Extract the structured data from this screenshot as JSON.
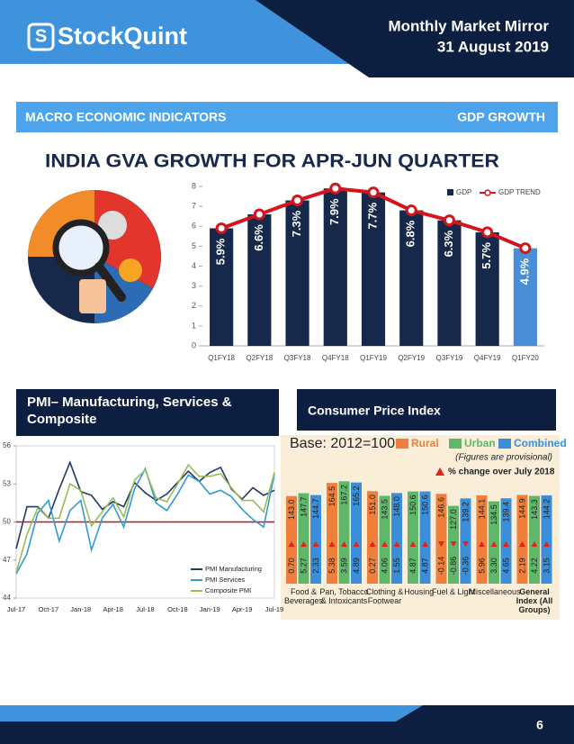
{
  "header": {
    "logo": "StockQuint",
    "title": "Monthly Market Mirror",
    "date": "31 August 2019"
  },
  "sections": {
    "macro": "MACRO ECONOMIC INDICATORS",
    "gdp": "GDP GROWTH",
    "pmi": "PMI– Manufacturing, Services & Composite",
    "cpi": "Consumer Price Index"
  },
  "page_number": "6",
  "chart_data": [
    {
      "type": "combo",
      "title": "INDIA GVA GROWTH FOR APR-JUN QUARTER",
      "categories": [
        "Q1FY18",
        "Q2FY18",
        "Q3FY18",
        "Q4FY18",
        "Q1FY19",
        "Q2FY19",
        "Q3FY19",
        "Q4FY19",
        "Q1FY20"
      ],
      "series": [
        {
          "name": "GDP",
          "color": "#17294a",
          "colors": [
            "#17294a",
            "#17294a",
            "#17294a",
            "#17294a",
            "#17294a",
            "#17294a",
            "#17294a",
            "#17294a",
            "#4a8fd6"
          ],
          "values": [
            5.9,
            6.6,
            7.3,
            7.9,
            7.7,
            6.8,
            6.3,
            5.7,
            4.9
          ],
          "value_labels": [
            "5.9%",
            "6.6%",
            "7.3%",
            "7.9%",
            "7.7%",
            "6.8%",
            "6.3%",
            "5.7%",
            "4.9%"
          ]
        },
        {
          "name": "GDP TREND",
          "color": "#d3151d",
          "values": [
            5.9,
            6.6,
            7.3,
            7.9,
            7.7,
            6.8,
            6.3,
            5.7,
            4.9
          ]
        }
      ],
      "ylim": [
        0,
        8
      ],
      "yticks": [
        0,
        1,
        2,
        3,
        4,
        5,
        6,
        7,
        8
      ]
    },
    {
      "type": "line",
      "categories": [
        "Jul-17",
        null,
        null,
        "Oct-17",
        null,
        null,
        "Jan-18",
        null,
        null,
        "Apr-18",
        null,
        null,
        "Jul-18",
        null,
        null,
        "Oct-18",
        null,
        null,
        "Jan-19",
        null,
        null,
        "Apr-19",
        null,
        null,
        "Jul-19"
      ],
      "series": [
        {
          "name": "PMI Manufacturing",
          "color": "#1f3864",
          "values": [
            47.9,
            51.2,
            51.2,
            50.3,
            52.6,
            54.7,
            52.4,
            52.1,
            51.0,
            51.6,
            51.2,
            53.1,
            52.3,
            51.7,
            52.2,
            53.1,
            54.0,
            53.2,
            53.9,
            54.3,
            52.6,
            51.8,
            52.7,
            52.1,
            52.5
          ]
        },
        {
          "name": "PMI Services",
          "color": "#2e9bd6",
          "values": [
            45.9,
            47.5,
            50.7,
            51.7,
            48.5,
            50.9,
            51.7,
            47.8,
            50.3,
            51.4,
            49.6,
            52.6,
            54.2,
            51.5,
            50.9,
            52.2,
            53.7,
            53.2,
            52.2,
            52.5,
            52.0,
            51.0,
            50.2,
            49.6,
            53.8
          ]
        },
        {
          "name": "Composite PMI",
          "color": "#9bbb59",
          "values": [
            46.0,
            49.0,
            51.1,
            50.3,
            50.3,
            53.0,
            52.5,
            49.7,
            50.8,
            51.9,
            50.4,
            53.3,
            54.1,
            51.9,
            51.6,
            53.0,
            54.5,
            53.6,
            53.6,
            53.8,
            52.7,
            51.7,
            51.7,
            50.8,
            53.9
          ]
        }
      ],
      "ylim": [
        44,
        56
      ],
      "yticks": [
        44,
        47,
        50,
        53,
        56
      ],
      "reference_line": {
        "value": 50,
        "color": "#c0141c"
      }
    },
    {
      "type": "grouped_bar",
      "note": "Base: 2012=100",
      "provisional": "(Figures are provisional)",
      "change_title": "% change over July 2018",
      "categories": [
        "Food & Beverages",
        "Pan, Tobacco & Intoxicants",
        "Clothing & Footwear",
        "Housing",
        "Fuel & Light",
        "Miscellaneous",
        "General Index (All Groups)"
      ],
      "series": [
        {
          "name": "Rural",
          "color": "#f07f3c",
          "values": [
            143.0,
            164.5,
            151.0,
            null,
            146.6,
            144.1,
            144.9
          ],
          "value_labels": [
            "143.0",
            "164.5",
            "151.0",
            null,
            "146.6",
            "144.1",
            "144.9"
          ],
          "changes": [
            0.7,
            5.38,
            0.27,
            null,
            -0.14,
            5.96,
            2.19
          ],
          "change_labels": [
            "0.70",
            "5.38",
            "0.27",
            null,
            "-0.14",
            "5.96",
            "2.19"
          ]
        },
        {
          "name": "Urban",
          "color": "#5fb86a",
          "values": [
            147.7,
            167.2,
            143.5,
            150.6,
            127.0,
            134.5,
            143.3
          ],
          "value_labels": [
            "147.7",
            "167.2",
            "143.5",
            "150.6",
            "127.0",
            "134.5",
            "143.3"
          ],
          "changes": [
            5.27,
            3.59,
            4.06,
            4.87,
            -0.86,
            3.3,
            4.22
          ],
          "change_labels": [
            "5.27",
            "3.59",
            "4.06",
            "4.87",
            "-0.86",
            "3.30",
            "4.22"
          ]
        },
        {
          "name": "Combined",
          "color": "#3a8fd8",
          "values": [
            144.7,
            165.2,
            148.0,
            150.6,
            139.2,
            139.4,
            144.2
          ],
          "value_labels": [
            "144.7",
            "165.2",
            "148.0",
            "150.6",
            "139.2",
            "139.4",
            "144.2"
          ],
          "changes": [
            2.33,
            4.89,
            1.55,
            4.87,
            -0.36,
            4.65,
            3.15
          ],
          "change_labels": [
            "2.33",
            "4.89",
            "1.55",
            "4.87",
            "-0.36",
            "4.65",
            "3.15"
          ]
        }
      ]
    }
  ]
}
